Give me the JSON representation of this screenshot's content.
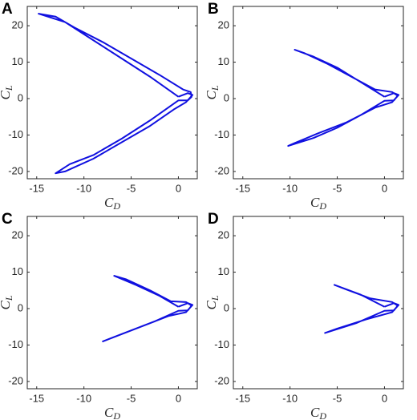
{
  "chart_data": [
    {
      "type": "line",
      "panel_label": "A",
      "xlabel": {
        "symbol": "C",
        "subscript": "D"
      },
      "ylabel": {
        "symbol": "C",
        "subscript": "L"
      },
      "xlim": [
        -16,
        2
      ],
      "ylim": [
        -22,
        25.3
      ],
      "xticks": [
        -15,
        -10,
        -5,
        0
      ],
      "yticks": [
        -20,
        -10,
        0,
        10,
        20
      ],
      "color": "#1010e0",
      "x": [
        0,
        -3,
        -6,
        -9,
        -12,
        -14.8,
        -13,
        -11,
        -8,
        -5,
        -2,
        0.5,
        1.3,
        1.4,
        1,
        0,
        -3,
        -6,
        -9,
        -11.5,
        -13,
        -12,
        -9,
        -6,
        -3,
        -0.5,
        0.8,
        1.5,
        1,
        0
      ],
      "y": [
        0.5,
        6,
        11,
        16,
        21,
        23.3,
        22.5,
        19.5,
        15.5,
        11,
        6.5,
        2.5,
        1.8,
        0.5,
        -0.5,
        -0.5,
        -6,
        -11,
        -15.5,
        -18,
        -20.5,
        -20,
        -16.5,
        -12,
        -7.5,
        -3,
        -1,
        1,
        1.5,
        0.5
      ]
    },
    {
      "type": "line",
      "panel_label": "B",
      "xlabel": {
        "symbol": "C",
        "subscript": "D"
      },
      "ylabel": {
        "symbol": "C",
        "subscript": "L"
      },
      "xlim": [
        -16,
        2
      ],
      "ylim": [
        -22,
        25.3
      ],
      "xticks": [
        -15,
        -10,
        -5,
        0
      ],
      "yticks": [
        -20,
        -10,
        0,
        10,
        20
      ],
      "color": "#1010e0",
      "x": [
        0,
        -2.5,
        -5,
        -7.5,
        -9.5,
        -8.5,
        -6,
        -3.5,
        -1,
        0.8,
        1.4,
        1,
        0,
        -2.5,
        -5,
        -7.5,
        -10.2,
        -9.5,
        -7,
        -4,
        -1,
        0.8,
        1.5,
        1,
        0
      ],
      "y": [
        0.5,
        4.5,
        8.5,
        11.5,
        13.4,
        12.5,
        9.5,
        6,
        2.5,
        1.8,
        0.8,
        -0.5,
        -0.6,
        -4.5,
        -8,
        -10.8,
        -13,
        -12.2,
        -9.5,
        -6.5,
        -2.5,
        -1,
        1,
        1.5,
        0.5
      ]
    },
    {
      "type": "line",
      "panel_label": "C",
      "xlabel": {
        "symbol": "C",
        "subscript": "D"
      },
      "ylabel": {
        "symbol": "C",
        "subscript": "L"
      },
      "xlim": [
        -16,
        2
      ],
      "ylim": [
        -22,
        25.3
      ],
      "xticks": [
        -15,
        -10,
        -5,
        0
      ],
      "yticks": [
        -20,
        -10,
        0,
        10,
        20
      ],
      "color": "#1010e0",
      "x": [
        0,
        -2,
        -4.5,
        -6.8,
        -5.5,
        -3,
        -0.8,
        0.8,
        1.4,
        1,
        0,
        -2.5,
        -5,
        -8,
        -7,
        -4,
        -1,
        0.8,
        1.5,
        1,
        0
      ],
      "y": [
        0.5,
        3.5,
        6.5,
        9,
        8,
        5,
        2,
        1.8,
        0.8,
        -0.5,
        -0.6,
        -3.5,
        -6,
        -9,
        -8,
        -5,
        -2,
        -1,
        1,
        1.5,
        0.5
      ]
    },
    {
      "type": "line",
      "panel_label": "D",
      "xlabel": {
        "symbol": "C",
        "subscript": "D"
      },
      "ylabel": {
        "symbol": "C",
        "subscript": "L"
      },
      "xlim": [
        -16,
        2
      ],
      "ylim": [
        -22,
        25.3
      ],
      "xticks": [
        -15,
        -10,
        -5,
        0
      ],
      "yticks": [
        -20,
        -10,
        0,
        10,
        20
      ],
      "color": "#1010e0",
      "x": [
        0,
        -2.5,
        -5.3,
        -4,
        -1.5,
        0.8,
        1.4,
        1,
        0,
        -3,
        -6.3,
        -5,
        -2,
        0.8,
        1.5,
        1,
        0
      ],
      "y": [
        0.5,
        3.8,
        6.5,
        5.2,
        2.8,
        1.8,
        0.8,
        -0.5,
        -0.6,
        -4,
        -6.7,
        -5.5,
        -3,
        -1,
        1,
        1.5,
        0.5
      ]
    }
  ]
}
